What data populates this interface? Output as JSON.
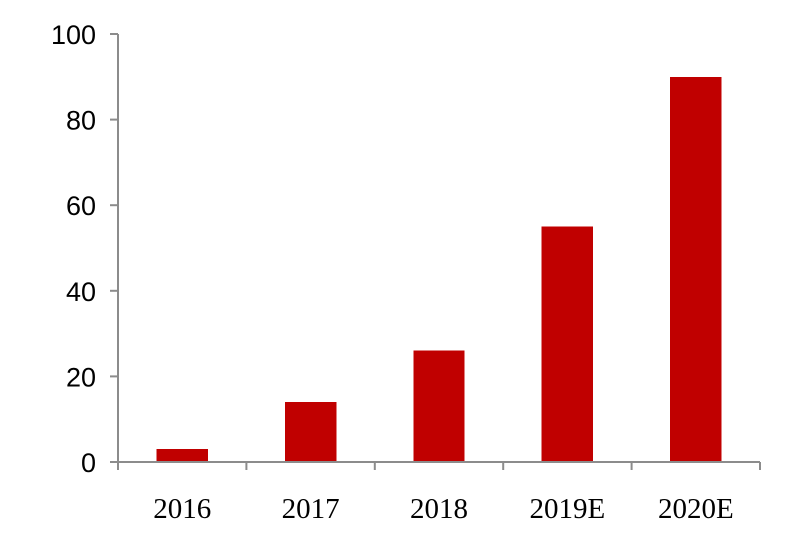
{
  "chart_data": {
    "type": "bar",
    "title": "",
    "xlabel": "",
    "ylabel": "",
    "categories": [
      "2016",
      "2017",
      "2018",
      "2019E",
      "2020E"
    ],
    "values": [
      3,
      14,
      26,
      55,
      90
    ],
    "ylim": [
      0,
      100
    ],
    "yticks": [
      "0",
      "20",
      "40",
      "60",
      "80",
      "100"
    ],
    "bar_color": "#c00000",
    "grid": false,
    "legend": "none"
  }
}
